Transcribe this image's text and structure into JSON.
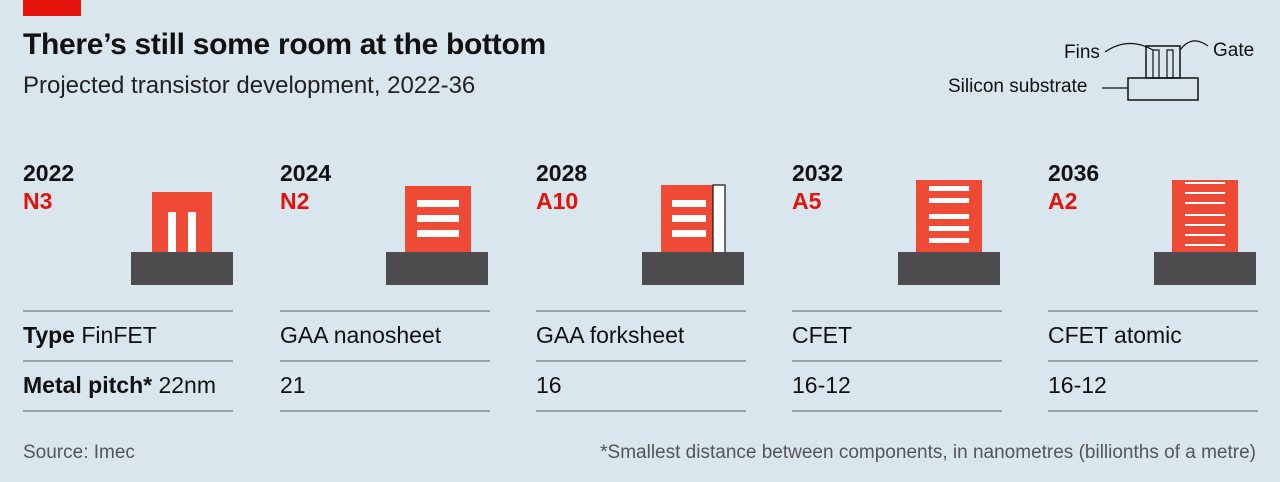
{
  "header": {
    "title": "There’s still some room at the bottom",
    "subtitle": "Projected transistor development, 2022-36"
  },
  "legend": {
    "fins": "Fins",
    "gate": "Gate",
    "substrate": "Silicon substrate"
  },
  "row_labels": {
    "type": "Type",
    "metal_pitch": "Metal pitch*"
  },
  "columns": [
    {
      "year": "2022",
      "node": "N3",
      "type": "FinFET",
      "pitch": "22nm"
    },
    {
      "year": "2024",
      "node": "N2",
      "type": "GAA nanosheet",
      "pitch": "21"
    },
    {
      "year": "2028",
      "node": "A10",
      "type": "GAA forksheet",
      "pitch": "16"
    },
    {
      "year": "2032",
      "node": "A5",
      "type": "CFET",
      "pitch": "16-12"
    },
    {
      "year": "2036",
      "node": "A2",
      "type": "CFET atomic",
      "pitch": "16-12"
    }
  ],
  "footer": {
    "source": "Source: Imec",
    "note": "*Smallest distance between components, in nanometres (billionths of a metre)"
  },
  "colors": {
    "accent_red": "#e3120b",
    "gate_orange": "#ef4a35",
    "substrate_grey": "#4d4b4e",
    "background": "#d9e6ee"
  }
}
